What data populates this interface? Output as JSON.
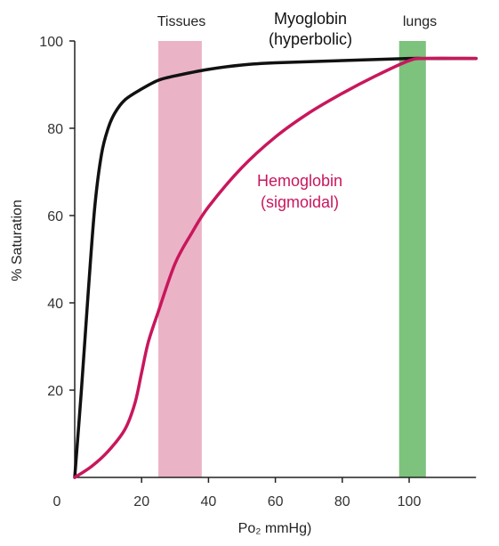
{
  "chart_data": {
    "type": "line",
    "title": "",
    "xlabel": "Po₂ mmHg)",
    "ylabel": "% Saturation",
    "xlim": [
      0,
      120
    ],
    "ylim": [
      0,
      100
    ],
    "xticks": [
      0,
      20,
      40,
      60,
      80,
      100
    ],
    "yticks": [
      20,
      40,
      60,
      80,
      100
    ],
    "grid": false,
    "regions": [
      {
        "label": "Tissues",
        "x_start": 25,
        "x_end": 38,
        "color": "#ebb3c6"
      },
      {
        "label": "lungs",
        "x_start": 97,
        "x_end": 105,
        "color": "#7dc27d"
      }
    ],
    "series": [
      {
        "name": "Myoglobin",
        "name_line2": "(hyperbolic)",
        "color": "#111111",
        "label_color": "#111111",
        "x": [
          0,
          2,
          4,
          6,
          8,
          10,
          12,
          15,
          20,
          25,
          30,
          40,
          50,
          60,
          80,
          100,
          105,
          120
        ],
        "y": [
          0,
          20,
          42,
          62,
          74,
          80,
          83.5,
          86.5,
          89,
          91,
          92,
          93.5,
          94.5,
          95,
          95.5,
          96,
          96,
          96
        ]
      },
      {
        "name": "Hemoglobin",
        "name_line2": "(sigmoidal)",
        "color": "#c8175d",
        "label_color": "#c8175d",
        "x": [
          0,
          5,
          10,
          15,
          18,
          20,
          22,
          25,
          30,
          35,
          40,
          50,
          60,
          70,
          80,
          90,
          100,
          105,
          120
        ],
        "y": [
          0,
          2.5,
          6,
          11,
          17,
          24,
          31,
          38,
          49,
          56,
          62,
          71,
          78,
          83.5,
          88,
          92,
          95.5,
          96,
          96
        ]
      }
    ]
  }
}
